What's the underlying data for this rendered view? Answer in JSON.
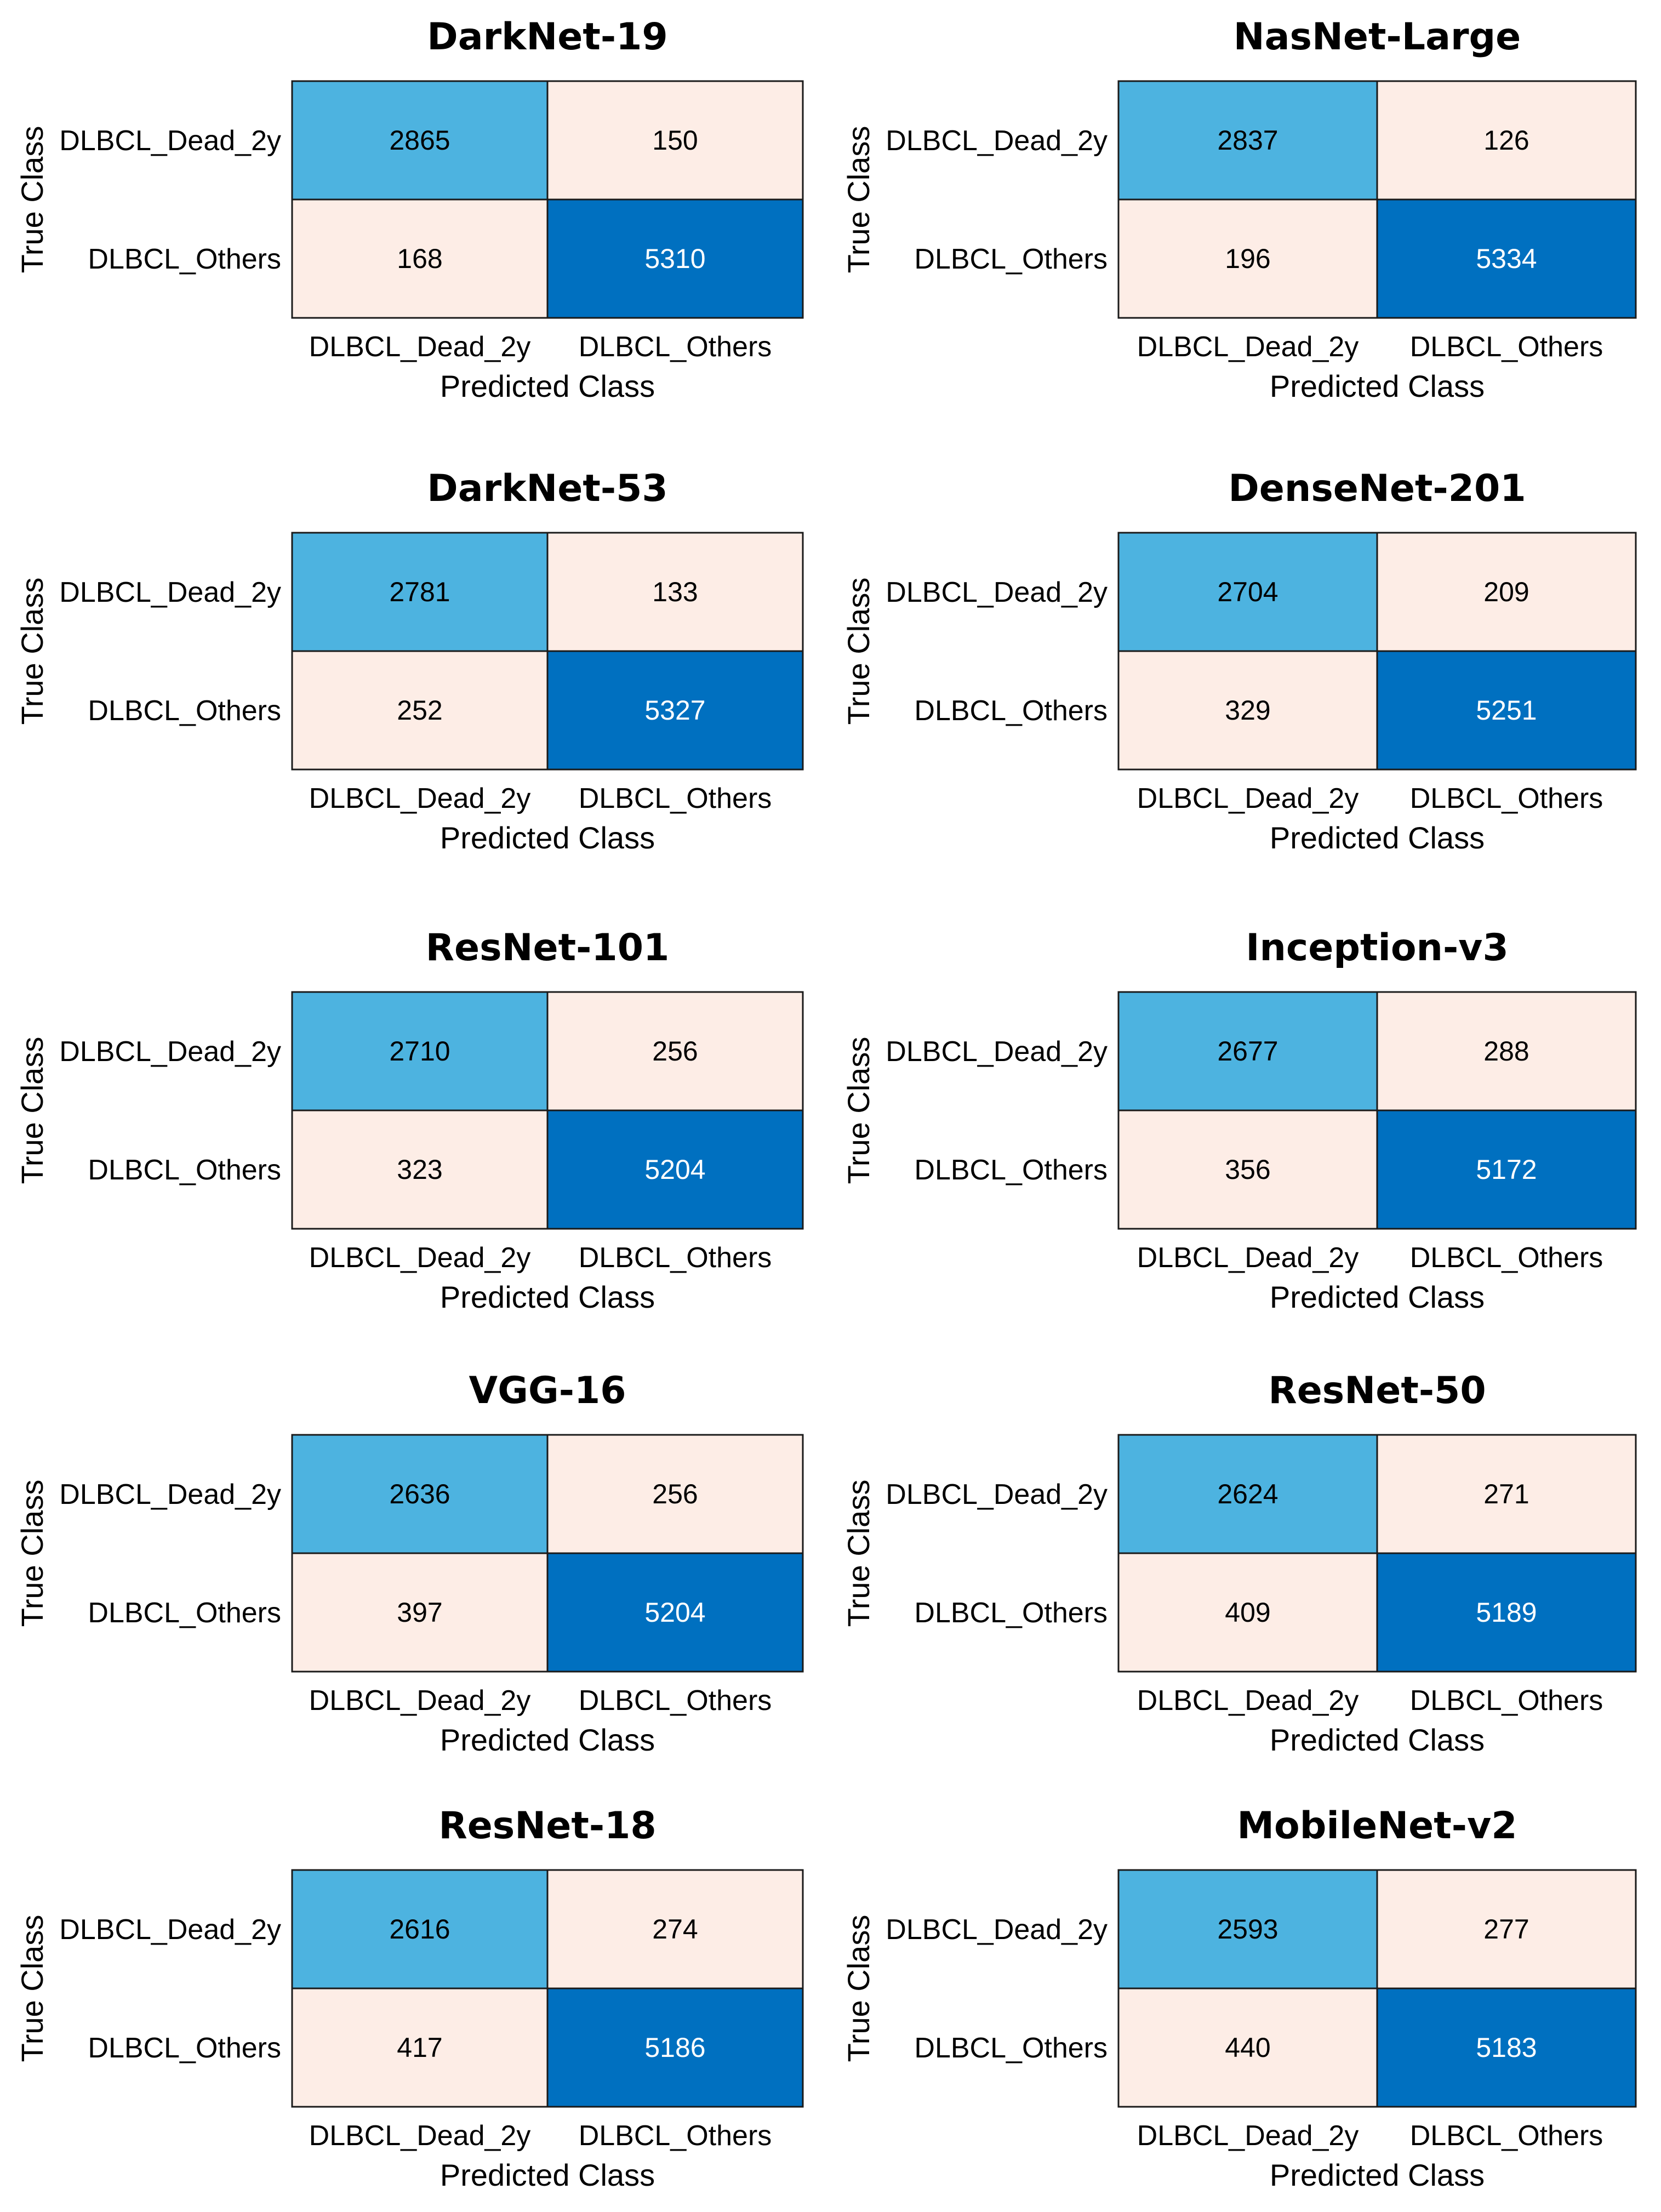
{
  "chart_data": [
    {
      "type": "heatmap",
      "title": "DarkNet-19",
      "xlabel": "Predicted Class",
      "ylabel": "True Class",
      "x_categories": [
        "DLBCL_Dead_2y",
        "DLBCL_Others"
      ],
      "y_categories": [
        "DLBCL_Dead_2y",
        "DLBCL_Others"
      ],
      "values": [
        [
          2865,
          150
        ],
        [
          168,
          5310
        ]
      ]
    },
    {
      "type": "heatmap",
      "title": "NasNet-Large",
      "xlabel": "Predicted Class",
      "ylabel": "True Class",
      "x_categories": [
        "DLBCL_Dead_2y",
        "DLBCL_Others"
      ],
      "y_categories": [
        "DLBCL_Dead_2y",
        "DLBCL_Others"
      ],
      "values": [
        [
          2837,
          126
        ],
        [
          196,
          5334
        ]
      ]
    },
    {
      "type": "heatmap",
      "title": "DarkNet-53",
      "xlabel": "Predicted Class",
      "ylabel": "True Class",
      "x_categories": [
        "DLBCL_Dead_2y",
        "DLBCL_Others"
      ],
      "y_categories": [
        "DLBCL_Dead_2y",
        "DLBCL_Others"
      ],
      "values": [
        [
          2781,
          133
        ],
        [
          252,
          5327
        ]
      ]
    },
    {
      "type": "heatmap",
      "title": "DenseNet-201",
      "xlabel": "Predicted Class",
      "ylabel": "True Class",
      "x_categories": [
        "DLBCL_Dead_2y",
        "DLBCL_Others"
      ],
      "y_categories": [
        "DLBCL_Dead_2y",
        "DLBCL_Others"
      ],
      "values": [
        [
          2704,
          209
        ],
        [
          329,
          5251
        ]
      ]
    },
    {
      "type": "heatmap",
      "title": "ResNet-101",
      "xlabel": "Predicted Class",
      "ylabel": "True Class",
      "x_categories": [
        "DLBCL_Dead_2y",
        "DLBCL_Others"
      ],
      "y_categories": [
        "DLBCL_Dead_2y",
        "DLBCL_Others"
      ],
      "values": [
        [
          2710,
          256
        ],
        [
          323,
          5204
        ]
      ]
    },
    {
      "type": "heatmap",
      "title": "Inception-v3",
      "xlabel": "Predicted Class",
      "ylabel": "True Class",
      "x_categories": [
        "DLBCL_Dead_2y",
        "DLBCL_Others"
      ],
      "y_categories": [
        "DLBCL_Dead_2y",
        "DLBCL_Others"
      ],
      "values": [
        [
          2677,
          288
        ],
        [
          356,
          5172
        ]
      ]
    },
    {
      "type": "heatmap",
      "title": "VGG-16",
      "xlabel": "Predicted Class",
      "ylabel": "True Class",
      "x_categories": [
        "DLBCL_Dead_2y",
        "DLBCL_Others"
      ],
      "y_categories": [
        "DLBCL_Dead_2y",
        "DLBCL_Others"
      ],
      "values": [
        [
          2636,
          256
        ],
        [
          397,
          5204
        ]
      ]
    },
    {
      "type": "heatmap",
      "title": "ResNet-50",
      "xlabel": "Predicted Class",
      "ylabel": "True Class",
      "x_categories": [
        "DLBCL_Dead_2y",
        "DLBCL_Others"
      ],
      "y_categories": [
        "DLBCL_Dead_2y",
        "DLBCL_Others"
      ],
      "values": [
        [
          2624,
          271
        ],
        [
          409,
          5189
        ]
      ]
    },
    {
      "type": "heatmap",
      "title": "ResNet-18",
      "xlabel": "Predicted Class",
      "ylabel": "True Class",
      "x_categories": [
        "DLBCL_Dead_2y",
        "DLBCL_Others"
      ],
      "y_categories": [
        "DLBCL_Dead_2y",
        "DLBCL_Others"
      ],
      "values": [
        [
          2616,
          274
        ],
        [
          417,
          5186
        ]
      ]
    },
    {
      "type": "heatmap",
      "title": "MobileNet-v2",
      "xlabel": "Predicted Class",
      "ylabel": "True Class",
      "x_categories": [
        "DLBCL_Dead_2y",
        "DLBCL_Others"
      ],
      "y_categories": [
        "DLBCL_Dead_2y",
        "DLBCL_Others"
      ],
      "values": [
        [
          2593,
          277
        ],
        [
          440,
          5183
        ]
      ]
    }
  ],
  "colors": {
    "correct_dark": "#0070C0",
    "correct_light": "#4DB3E0",
    "error_fill": "#FDEDE6",
    "grid_line": "#1a1a1a",
    "text_dark": "#000000",
    "text_light": "#ffffff"
  }
}
